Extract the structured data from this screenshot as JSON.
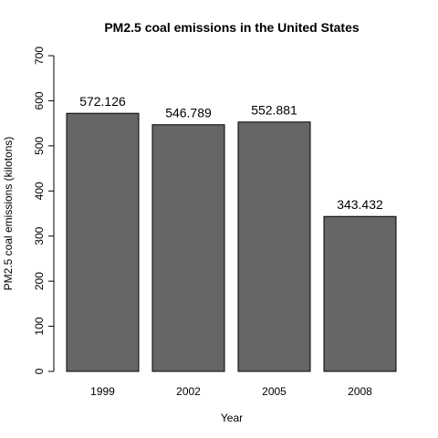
{
  "chart_data": {
    "type": "bar",
    "title": "PM2.5 coal emissions in the United States",
    "xlabel": "Year",
    "ylabel": "PM2.5 coal emissions (kilotons)",
    "categories": [
      "1999",
      "2002",
      "2005",
      "2008"
    ],
    "values": [
      572.126,
      546.789,
      552.881,
      343.432
    ],
    "data_labels": [
      "572.126",
      "546.789",
      "552.881",
      "343.432"
    ],
    "ylim": [
      0,
      700
    ],
    "yticks": [
      0,
      100,
      200,
      300,
      400,
      500,
      600,
      700
    ],
    "bar_color": "#666666",
    "grid": false,
    "legend": "none"
  }
}
